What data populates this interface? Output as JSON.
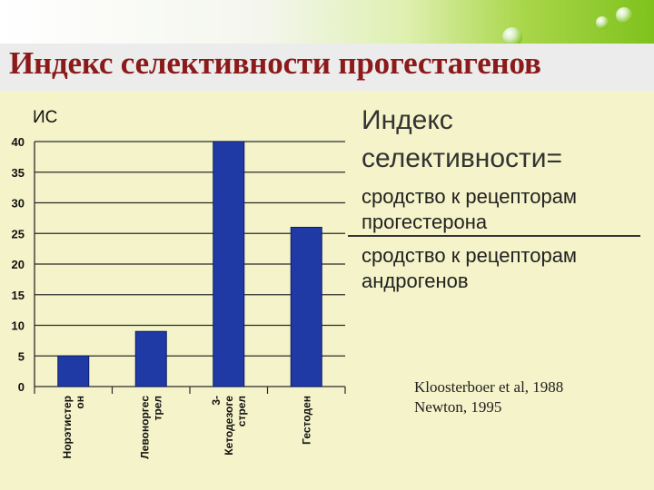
{
  "title": "Индекс селективности прогестагенов",
  "formula": {
    "head_line1": "Индекс",
    "head_line2": "селективности=",
    "numerator_line1": "сродство к рецепторам",
    "numerator_line2": "прогестерона",
    "denominator_line1": "сродство к рецепторам",
    "denominator_line2": "андрогенов"
  },
  "references": [
    "Kloosterboer et al, 1988",
    "Newton, 1995"
  ],
  "chart_data": {
    "type": "bar",
    "ylabel": "ИС",
    "ylim": [
      0,
      40
    ],
    "yticks": [
      0,
      5,
      10,
      15,
      20,
      25,
      30,
      35,
      40
    ],
    "grid": true,
    "bar_color": "#1f3aa5",
    "categories": [
      {
        "lines": [
          "Норэтистер",
          "он"
        ],
        "value": 5
      },
      {
        "lines": [
          "Левоноргес",
          "трел"
        ],
        "value": 9
      },
      {
        "lines": [
          "3-",
          "Кетодезоге",
          "стрел"
        ],
        "value": 40
      },
      {
        "lines": [
          "Гестоден"
        ],
        "value": 26
      }
    ]
  }
}
